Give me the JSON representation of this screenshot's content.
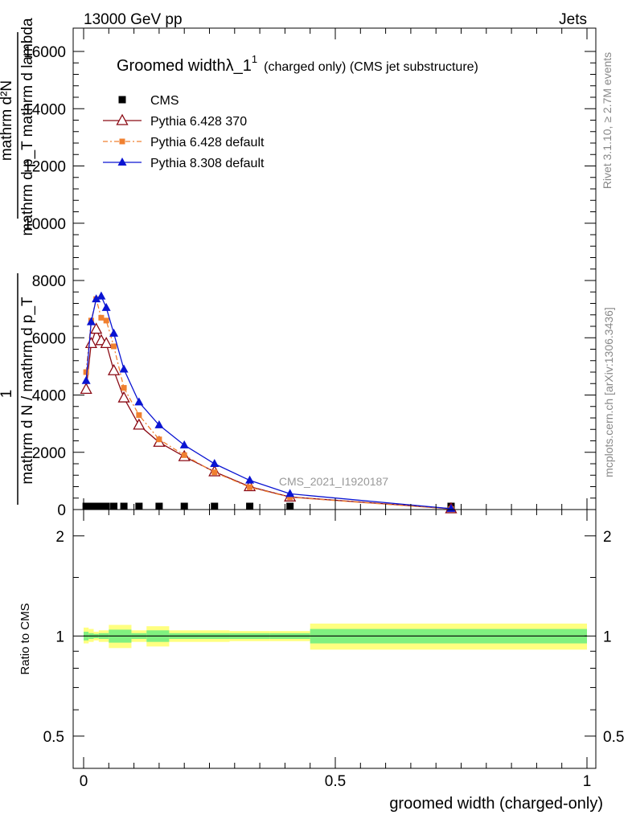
{
  "header": {
    "left": "13000 GeV pp",
    "right": "Jets"
  },
  "side_labels": {
    "rivet": "Rivet 3.1.10, ≥ 2.7M events",
    "mcplots": "mcplots.cern.ch [arXiv:1306.3436]"
  },
  "main_panel": {
    "title_main": "Groomed width",
    "title_lambda": "λ_1",
    "title_sup": "1",
    "title_suffix": "(charged only) (CMS jet substructure)",
    "ylabel_numerator": "mathrm d²N",
    "ylabel_denominator": "mathrm d p_T mathrm d lambda",
    "ylabel_denominator_sub": "T",
    "ylabel_prefactor_num": "1",
    "ylabel_prefactor_den": "mathrm d N / mathrm d p_T",
    "ylabel_prefactor_den_sub": "T",
    "watermark": "CMS_2021_I1920187",
    "yticks": [
      "0",
      "2000",
      "4000",
      "6000",
      "8000",
      "10000",
      "12000",
      "14000",
      "16000"
    ]
  },
  "ratio_panel": {
    "ylabel": "Ratio to CMS",
    "yticks": [
      "0.5",
      "1",
      "2"
    ],
    "xticks": [
      "0",
      "0.5",
      "1"
    ],
    "xlabel": "groomed width (charged-only)"
  },
  "colors": {
    "cms": "#000000",
    "py6_370": "#8b0a14",
    "py6_default": "#f08030",
    "py8": "#0a14d2",
    "band_outer": "#ffff80",
    "band_inner": "#80f080"
  },
  "chart_data": {
    "type": "line",
    "xlim": [
      0,
      1
    ],
    "ylim": [
      0,
      16000
    ],
    "ratio_ylim": [
      0.4,
      2.4
    ],
    "ratio_log": true,
    "legend_position": "top-left",
    "series": [
      {
        "name": "CMS",
        "marker": "square",
        "x": [
          0.005,
          0.015,
          0.025,
          0.035,
          0.045,
          0.06,
          0.08,
          0.11,
          0.15,
          0.2,
          0.26,
          0.33,
          0.41,
          0.73
        ],
        "values": [
          0,
          0,
          0,
          0,
          0,
          0,
          0,
          0,
          0,
          0,
          0,
          0,
          0,
          0
        ]
      },
      {
        "name": "Pythia 6.428 370",
        "marker": "open-triangle",
        "x": [
          0.005,
          0.015,
          0.025,
          0.035,
          0.045,
          0.06,
          0.08,
          0.11,
          0.15,
          0.2,
          0.26,
          0.33,
          0.41,
          0.73
        ],
        "values": [
          4200,
          5800,
          6300,
          5900,
          5800,
          4850,
          3900,
          2950,
          2350,
          1850,
          1320,
          800,
          440,
          30
        ]
      },
      {
        "name": "Pythia 6.428 default",
        "marker": "filled-square",
        "x": [
          0.005,
          0.015,
          0.025,
          0.035,
          0.045,
          0.06,
          0.08,
          0.11,
          0.15,
          0.2,
          0.26,
          0.33,
          0.41,
          0.73
        ],
        "values": [
          4800,
          6600,
          7350,
          6700,
          6600,
          5700,
          4250,
          3300,
          2450,
          1900,
          1300,
          780,
          430,
          20
        ]
      },
      {
        "name": "Pythia 8.308 default",
        "marker": "filled-triangle",
        "x": [
          0.005,
          0.015,
          0.025,
          0.035,
          0.045,
          0.06,
          0.08,
          0.11,
          0.15,
          0.2,
          0.26,
          0.33,
          0.41,
          0.73
        ],
        "values": [
          4500,
          6550,
          7350,
          7450,
          7050,
          6150,
          4900,
          3750,
          2950,
          2250,
          1600,
          1020,
          550,
          30
        ]
      }
    ],
    "ratio_bands": [
      {
        "x0": 0.0,
        "x1": 0.01,
        "outer": [
          0.95,
          1.06
        ],
        "inner": [
          0.97,
          1.03
        ]
      },
      {
        "x0": 0.01,
        "x1": 0.02,
        "outer": [
          0.96,
          1.05
        ],
        "inner": [
          0.98,
          1.02
        ]
      },
      {
        "x0": 0.02,
        "x1": 0.03,
        "outer": [
          0.97,
          1.03
        ],
        "inner": [
          0.985,
          1.015
        ]
      },
      {
        "x0": 0.03,
        "x1": 0.05,
        "outer": [
          0.96,
          1.04
        ],
        "inner": [
          0.98,
          1.02
        ]
      },
      {
        "x0": 0.05,
        "x1": 0.095,
        "outer": [
          0.92,
          1.08
        ],
        "inner": [
          0.955,
          1.045
        ]
      },
      {
        "x0": 0.095,
        "x1": 0.125,
        "outer": [
          0.96,
          1.04
        ],
        "inner": [
          0.98,
          1.02
        ]
      },
      {
        "x0": 0.125,
        "x1": 0.17,
        "outer": [
          0.93,
          1.07
        ],
        "inner": [
          0.96,
          1.04
        ]
      },
      {
        "x0": 0.17,
        "x1": 0.23,
        "outer": [
          0.96,
          1.04
        ],
        "inner": [
          0.98,
          1.02
        ]
      },
      {
        "x0": 0.23,
        "x1": 0.29,
        "outer": [
          0.96,
          1.04
        ],
        "inner": [
          0.98,
          1.02
        ]
      },
      {
        "x0": 0.29,
        "x1": 0.37,
        "outer": [
          0.965,
          1.035
        ],
        "inner": [
          0.98,
          1.02
        ]
      },
      {
        "x0": 0.37,
        "x1": 0.45,
        "outer": [
          0.965,
          1.035
        ],
        "inner": [
          0.98,
          1.02
        ]
      },
      {
        "x0": 0.45,
        "x1": 1.0,
        "outer": [
          0.91,
          1.09
        ],
        "inner": [
          0.95,
          1.05
        ]
      }
    ]
  }
}
